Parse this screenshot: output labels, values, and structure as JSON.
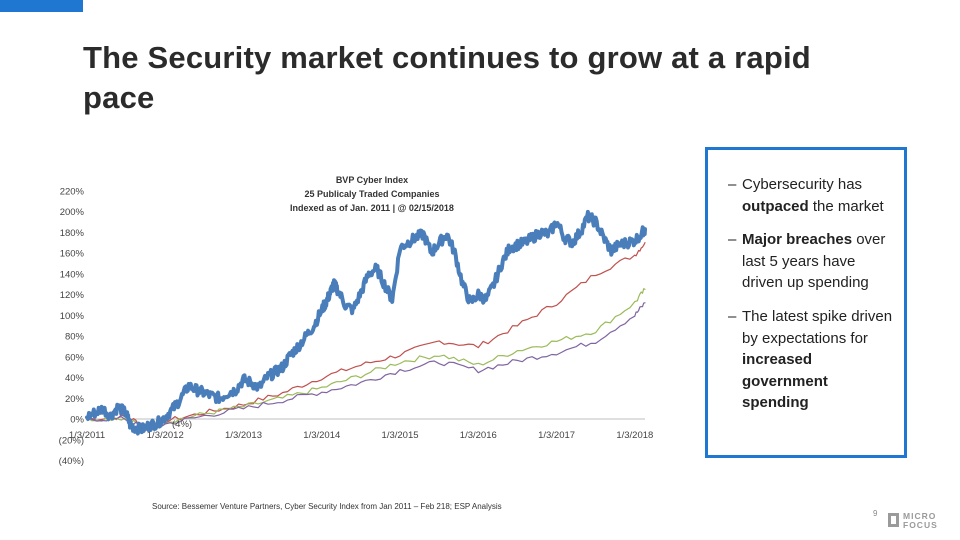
{
  "slide": {
    "title": "The Security market continues to grow at a rapid pace",
    "source": "Source: Bessemer Venture Partners, Cyber Security Index from Jan 2011 – Feb 218; ESP Analysis",
    "page_number": "9",
    "logo": {
      "line1": "MICRO",
      "line2": "FOCUS",
      "color": "#9a9a9a"
    },
    "accent_color": "#1f77d2"
  },
  "callout": {
    "border_color": "#1f77d2",
    "bullets": [
      {
        "dash": "–",
        "parts": [
          {
            "text": "Cybersecurity has "
          },
          {
            "text": "outpaced",
            "bold": true
          },
          {
            "text": " the market"
          }
        ]
      },
      {
        "dash": "–",
        "parts": [
          {
            "text": "Major breaches",
            "bold": true
          },
          {
            "text": " over last 5 years have driven up spending"
          }
        ]
      },
      {
        "dash": "–",
        "parts": [
          {
            "text": "The latest spike driven by expectations for "
          },
          {
            "text": "increased government spending",
            "bold": true
          }
        ]
      }
    ]
  },
  "chart_data": {
    "type": "line",
    "title": [
      "BVP Cyber Index",
      "25 Publicaly Traded Companies",
      "Indexed as of Jan. 2011 | @ 02/15/2018"
    ],
    "xlabel": "",
    "ylabel": "",
    "x_ticks": [
      "1/3/2011",
      "1/3/2012",
      "1/3/2013",
      "1/3/2014",
      "1/3/2015",
      "1/3/2016",
      "1/3/2017",
      "1/3/2018"
    ],
    "y_ticks": [
      "220%",
      "200%",
      "180%",
      "160%",
      "140%",
      "120%",
      "100%",
      "80%",
      "60%",
      "40%",
      "20%",
      "0%",
      "(20%)",
      "(40%)"
    ],
    "y_range_percent": [
      -40,
      220
    ],
    "x_range_years": [
      2011.0,
      2018.13
    ],
    "annotation": "(4%)",
    "grid": false,
    "series": [
      {
        "color": "#4a7ebb",
        "x": [
          2011.0,
          2011.1,
          2011.2,
          2011.3,
          2011.4,
          2011.5,
          2011.55,
          2011.6,
          2011.7,
          2011.8,
          2011.9,
          2012.0,
          2012.1,
          2012.2,
          2012.3,
          2012.4,
          2012.5,
          2012.6,
          2012.7,
          2012.8,
          2012.9,
          2013.0,
          2013.1,
          2013.2,
          2013.3,
          2013.4,
          2013.5,
          2013.6,
          2013.7,
          2013.8,
          2013.9,
          2014.0,
          2014.05,
          2014.1,
          2014.15,
          2014.2,
          2014.3,
          2014.4,
          2014.5,
          2014.6,
          2014.7,
          2014.8,
          2014.9,
          2015.0,
          2015.1,
          2015.2,
          2015.3,
          2015.4,
          2015.5,
          2015.6,
          2015.7,
          2015.8,
          2015.9,
          2016.0,
          2016.1,
          2016.2,
          2016.3,
          2016.4,
          2016.5,
          2016.6,
          2016.7,
          2016.8,
          2016.9,
          2017.0,
          2017.1,
          2017.2,
          2017.3,
          2017.4,
          2017.5,
          2017.6,
          2017.7,
          2017.8,
          2017.9,
          2018.0,
          2018.1,
          2018.13
        ],
        "values": [
          2,
          6,
          10,
          3,
          12,
          5,
          -5,
          -8,
          -10,
          -6,
          -4,
          2,
          10,
          20,
          32,
          28,
          25,
          22,
          20,
          25,
          28,
          38,
          35,
          30,
          40,
          45,
          50,
          62,
          70,
          80,
          90,
          105,
          112,
          120,
          130,
          125,
          110,
          105,
          122,
          140,
          145,
          130,
          115,
          165,
          170,
          175,
          178,
          160,
          170,
          178,
          160,
          130,
          112,
          120,
          115,
          130,
          150,
          165,
          168,
          170,
          175,
          180,
          178,
          190,
          175,
          170,
          180,
          195,
          190,
          175,
          162,
          168,
          170,
          172,
          180,
          183
        ]
      },
      {
        "color": "#c0504d",
        "x": [
          2011.0,
          2011.5,
          2011.75,
          2012.0,
          2012.5,
          2013.0,
          2013.5,
          2014.0,
          2014.5,
          2015.0,
          2015.5,
          2016.0,
          2016.5,
          2017.0,
          2017.5,
          2018.0,
          2018.13
        ],
        "values": [
          0,
          2,
          -6,
          -2,
          6,
          14,
          25,
          40,
          52,
          62,
          75,
          70,
          90,
          112,
          140,
          158,
          170
        ]
      },
      {
        "color": "#9bbb59",
        "x": [
          2011.0,
          2011.5,
          2011.75,
          2012.0,
          2012.5,
          2013.0,
          2013.5,
          2014.0,
          2014.5,
          2015.0,
          2015.5,
          2016.0,
          2016.5,
          2017.0,
          2017.5,
          2018.0,
          2018.13
        ],
        "values": [
          0,
          1,
          -8,
          -3,
          5,
          12,
          20,
          30,
          42,
          55,
          62,
          52,
          66,
          75,
          85,
          112,
          125
        ]
      },
      {
        "color": "#8064a2",
        "x": [
          2011.0,
          2011.5,
          2011.75,
          2012.0,
          2012.5,
          2013.0,
          2013.5,
          2014.0,
          2014.5,
          2015.0,
          2015.5,
          2016.0,
          2016.5,
          2017.0,
          2017.5,
          2018.0,
          2018.13
        ],
        "values": [
          0,
          0,
          -10,
          -5,
          3,
          10,
          18,
          26,
          35,
          47,
          55,
          47,
          56,
          64,
          75,
          100,
          112
        ]
      }
    ]
  }
}
